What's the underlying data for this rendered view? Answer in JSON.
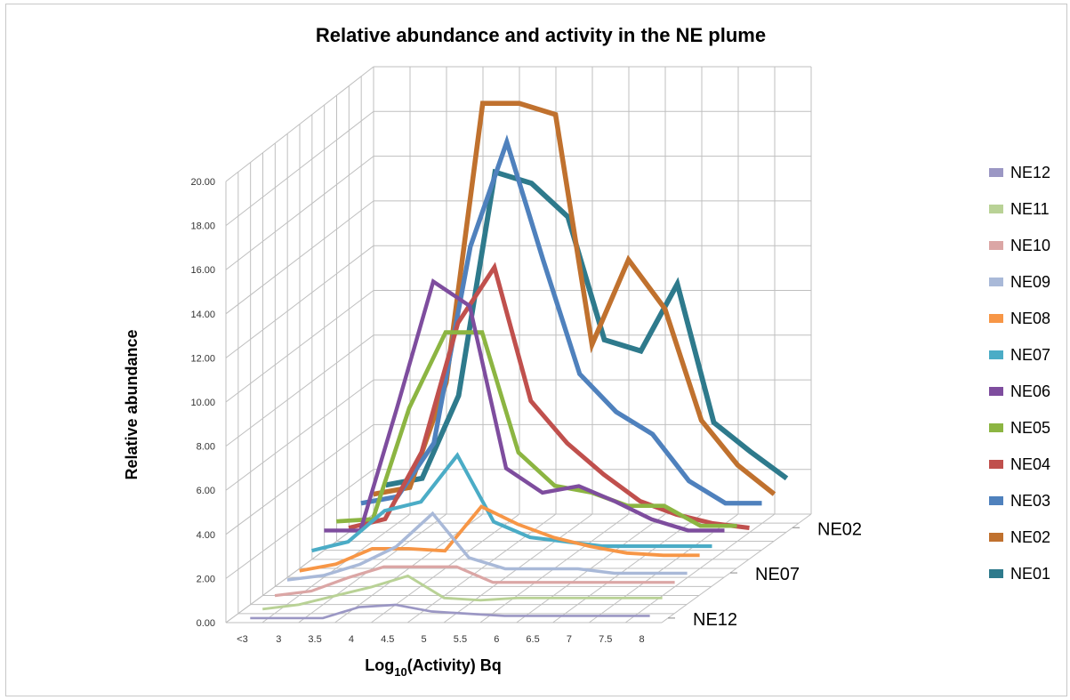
{
  "chart_data": {
    "type": "line",
    "subtype": "3d-line",
    "title": "Relative abundance and activity in the NE plume",
    "ylabel": "Relative abundance",
    "xlabel": {
      "prefix": "Log",
      "subscript": "10",
      "suffix": "(Activity)  Bq"
    },
    "ylim": [
      0,
      20
    ],
    "y_ticks": [
      "0.00",
      "2.00",
      "4.00",
      "6.00",
      "8.00",
      "10.00",
      "12.00",
      "14.00",
      "16.00",
      "18.00",
      "20.00"
    ],
    "categories": [
      "<3",
      "3",
      "3.5",
      "4",
      "4.5",
      "5",
      "5.5",
      "6",
      "6.5",
      "7",
      "7.5",
      "8"
    ],
    "depth_labels": [
      "NE12",
      "NE07",
      "NE02"
    ],
    "grid": true,
    "legend_position": "right",
    "series": [
      {
        "name": "NE12",
        "color": "#9b97c4",
        "values": [
          0,
          0,
          0,
          0.5,
          0.6,
          0.3,
          0.2,
          0.1,
          0.1,
          0.1,
          0.1,
          0.1
        ]
      },
      {
        "name": "NE11",
        "color": "#b9d296",
        "values": [
          0,
          0.2,
          0.6,
          1,
          1.5,
          0.5,
          0.4,
          0.5,
          0.5,
          0.5,
          0.5,
          0.5
        ]
      },
      {
        "name": "NE10",
        "color": "#dba6a5",
        "values": [
          0.2,
          0.4,
          1,
          1.5,
          1.5,
          1.5,
          0.8,
          0.8,
          0.8,
          0.8,
          0.8,
          0.8
        ]
      },
      {
        "name": "NE09",
        "color": "#a9b9d8",
        "values": [
          0.5,
          0.7,
          1.2,
          2,
          3.5,
          1.5,
          1,
          1,
          1,
          0.8,
          0.8,
          0.8
        ]
      },
      {
        "name": "NE08",
        "color": "#f79646",
        "values": [
          0.5,
          0.8,
          1.5,
          1.5,
          1.4,
          3.4,
          2.6,
          2,
          1.6,
          1.3,
          1.2,
          1.2
        ]
      },
      {
        "name": "NE07",
        "color": "#4bacc6",
        "values": [
          1,
          1.4,
          2.8,
          3.2,
          5.3,
          2.3,
          1.6,
          1.4,
          1.2,
          1.2,
          1.2,
          1.2
        ]
      },
      {
        "name": "NE06",
        "color": "#7e4d9e",
        "values": [
          1.5,
          1.5,
          7,
          12.7,
          11.6,
          4.3,
          3.2,
          3.5,
          2.8,
          2,
          1.5,
          1.5
        ]
      },
      {
        "name": "NE05",
        "color": "#8cb542",
        "values": [
          1.5,
          1.6,
          6.6,
          10,
          10,
          4.6,
          3.1,
          2.8,
          2.2,
          2.2,
          1.3,
          1.3
        ]
      },
      {
        "name": "NE04",
        "color": "#c0504d",
        "values": [
          0.8,
          1.2,
          4.2,
          10,
          12.5,
          6.5,
          4.6,
          3.2,
          2,
          1.4,
          1,
          0.8
        ]
      },
      {
        "name": "NE03",
        "color": "#4f81bd",
        "values": [
          1.5,
          1.8,
          4.2,
          13,
          17.7,
          12.4,
          7.3,
          5.6,
          4.6,
          2.5,
          1.5,
          1.5
        ]
      },
      {
        "name": "NE02",
        "color": "#c0712e",
        "values": [
          1.5,
          1.8,
          6.5,
          19,
          19,
          18.5,
          8.2,
          12,
          9.8,
          4.8,
          2.8,
          1.5
        ]
      },
      {
        "name": "NE01",
        "color": "#2e7a8c",
        "values": [
          1.5,
          1.8,
          5.5,
          15.5,
          15,
          13.5,
          8,
          7.5,
          10.5,
          4.3,
          3,
          1.8
        ]
      }
    ]
  }
}
